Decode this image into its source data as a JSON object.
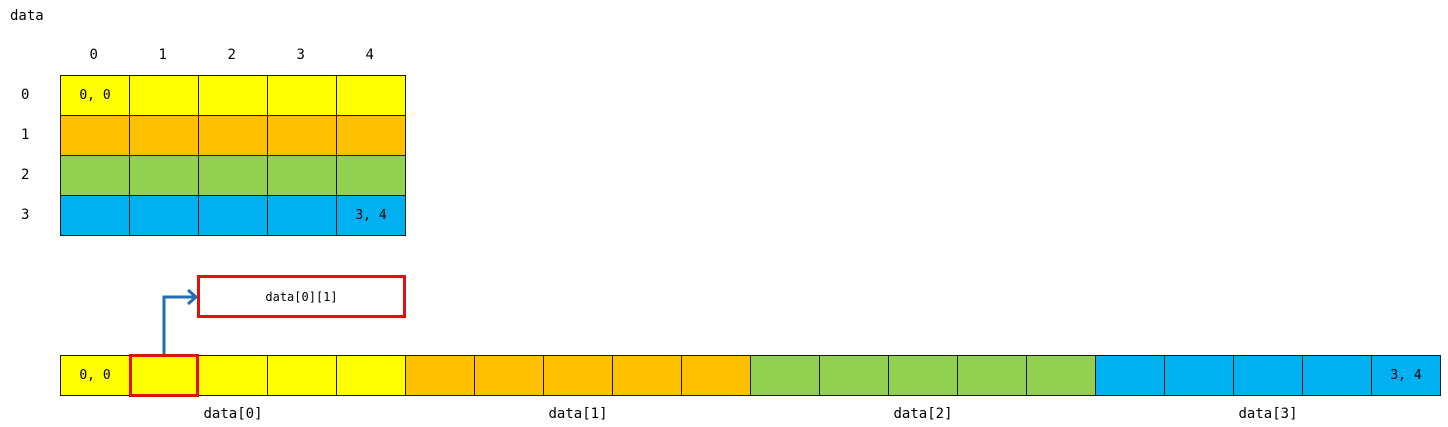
{
  "title": "data",
  "grid": {
    "column_headers": [
      "0",
      "1",
      "2",
      "3",
      "4"
    ],
    "row_headers": [
      "0",
      "1",
      "2",
      "3"
    ],
    "first_cell_label": "0, 0",
    "last_cell_label": "3, 4"
  },
  "row_colors": [
    "#ffff00",
    "#ffc000",
    "#92d050",
    "#00b0f0"
  ],
  "callout": {
    "label": "data[0][1]",
    "highlight_index": 1
  },
  "flat": {
    "first_cell_label": "0, 0",
    "last_cell_label": "3, 4",
    "group_labels": [
      "data[0]",
      "data[1]",
      "data[2]",
      "data[3]"
    ]
  },
  "colors": {
    "highlight": "#e01010",
    "arrow": "#1f6fb2"
  }
}
